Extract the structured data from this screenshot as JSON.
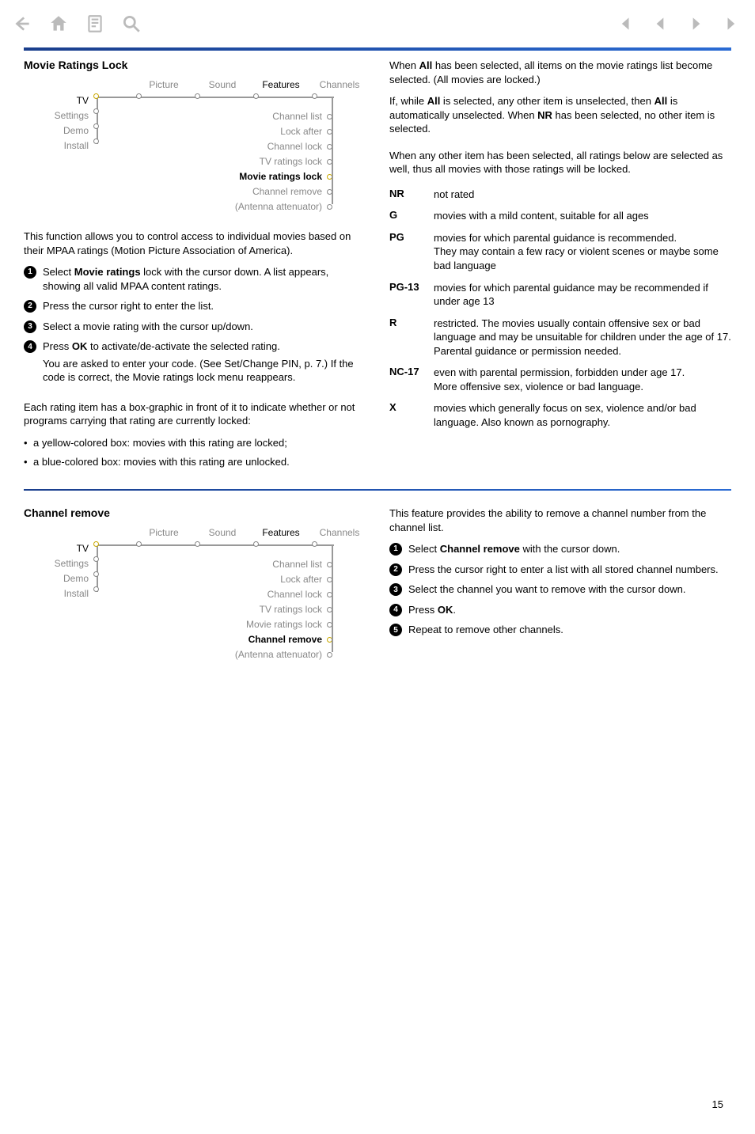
{
  "toolbar": {
    "icons_left": [
      "back-arrow",
      "home",
      "page",
      "search"
    ],
    "icons_right": [
      "first",
      "prev",
      "next",
      "last"
    ]
  },
  "section1": {
    "heading": "Movie Ratings Lock",
    "menu": {
      "top": [
        {
          "label": "Picture",
          "active": false
        },
        {
          "label": "Sound",
          "active": false
        },
        {
          "label": "Features",
          "active": true
        },
        {
          "label": "Channels",
          "active": false
        }
      ],
      "left": [
        {
          "label": "TV",
          "active": true
        },
        {
          "label": "Settings",
          "active": false
        },
        {
          "label": "Demo",
          "active": false
        },
        {
          "label": "Install",
          "active": false
        }
      ],
      "right": [
        {
          "label": "Channel list",
          "active": false
        },
        {
          "label": "Lock after",
          "active": false
        },
        {
          "label": "Channel lock",
          "active": false
        },
        {
          "label": "TV ratings lock",
          "active": false
        },
        {
          "label": "Movie ratings lock",
          "active": true
        },
        {
          "label": "Channel remove",
          "active": false
        },
        {
          "label": "(Antenna attenuator)",
          "active": false
        }
      ]
    },
    "intro": "This function allows you to control access to individual movies based on their MPAA ratings (Motion Picture Association of America).",
    "steps": [
      {
        "n": "1",
        "pre": "Select ",
        "bold": "Movie ratings",
        "post": " lock with the cursor down. A list appears, showing all valid MPAA content ratings."
      },
      {
        "n": "2",
        "pre": "Press the cursor right to enter the list.",
        "bold": "",
        "post": ""
      },
      {
        "n": "3",
        "pre": "Select a movie rating with the cursor up/down.",
        "bold": "",
        "post": ""
      },
      {
        "n": "4",
        "pre": "Press ",
        "bold": "OK",
        "post": " to activate/de-activate the selected rating.",
        "extra": "You are asked to enter your code. (See Set/Change PIN, p. 7.) If the code is correct, the Movie ratings lock menu reappears."
      }
    ],
    "box_intro": "Each rating item has a box-graphic in front of it to indicate whether or not programs carrying that rating are currently locked:",
    "box_bullets": [
      "a yellow-colored box: movies with this rating are locked;",
      "a blue-colored box: movies with this rating are unlocked."
    ],
    "right_paras": [
      {
        "frags": [
          {
            "t": "When "
          },
          {
            "t": "All",
            "b": true
          },
          {
            "t": " has been selected, all items on the movie ratings list become selected. (All movies are locked.)"
          }
        ]
      },
      {
        "frags": [
          {
            "t": "If, while "
          },
          {
            "t": "All",
            "b": true
          },
          {
            "t": " is selected, any other item is unselected, then "
          },
          {
            "t": "All",
            "b": true
          },
          {
            "t": " is automatically unselected. When "
          },
          {
            "t": "NR",
            "b": true
          },
          {
            "t": " has been selected, no other item is selected."
          }
        ]
      },
      {
        "frags": [
          {
            "t": "When any other item has been selected, all ratings below are selected as well, thus all movies with those ratings will be locked."
          }
        ]
      }
    ],
    "ratings": [
      {
        "k": "NR",
        "v": "not rated"
      },
      {
        "k": "G",
        "v": "movies with a mild content, suitable for all ages"
      },
      {
        "k": "PG",
        "v": "movies for which parental guidance is recommended.\nThey may contain a few racy or violent scenes or maybe some bad language"
      },
      {
        "k": "PG-13",
        "v": "movies for which parental guidance may be recommended if under age 13"
      },
      {
        "k": "R",
        "v": "restricted. The movies usually contain offensive sex or bad language and may be unsuitable for children under the age of 17. Parental guidance or permission needed."
      },
      {
        "k": "NC-17",
        "v": "even with parental permission, forbidden under age 17.\nMore offensive sex, violence or bad language."
      },
      {
        "k": "X",
        "v": "movies which generally focus on sex, violence and/or bad language. Also known as pornography."
      }
    ]
  },
  "section2": {
    "heading": "Channel remove",
    "menu": {
      "top": [
        {
          "label": "Picture",
          "active": false
        },
        {
          "label": "Sound",
          "active": false
        },
        {
          "label": "Features",
          "active": true
        },
        {
          "label": "Channels",
          "active": false
        }
      ],
      "left": [
        {
          "label": "TV",
          "active": true
        },
        {
          "label": "Settings",
          "active": false
        },
        {
          "label": "Demo",
          "active": false
        },
        {
          "label": "Install",
          "active": false
        }
      ],
      "right": [
        {
          "label": "Channel list",
          "active": false
        },
        {
          "label": "Lock after",
          "active": false
        },
        {
          "label": "Channel lock",
          "active": false
        },
        {
          "label": "TV ratings lock",
          "active": false
        },
        {
          "label": "Movie ratings lock",
          "active": false
        },
        {
          "label": "Channel remove",
          "active": true
        },
        {
          "label": "(Antenna attenuator)",
          "active": false
        }
      ]
    },
    "intro": "This feature provides the ability to remove a channel number from the channel list.",
    "steps": [
      {
        "n": "1",
        "pre": "Select ",
        "bold": "Channel remove",
        "post": " with the cursor down."
      },
      {
        "n": "2",
        "pre": "Press the cursor right to enter a list with all stored channel numbers.",
        "bold": "",
        "post": ""
      },
      {
        "n": "3",
        "pre": "Select the channel you want to remove with the cursor down.",
        "bold": "",
        "post": ""
      },
      {
        "n": "4",
        "pre": "Press ",
        "bold": "OK",
        "post": "."
      },
      {
        "n": "5",
        "pre": "Repeat to remove other channels.",
        "bold": "",
        "post": ""
      }
    ]
  },
  "page_number": "15"
}
